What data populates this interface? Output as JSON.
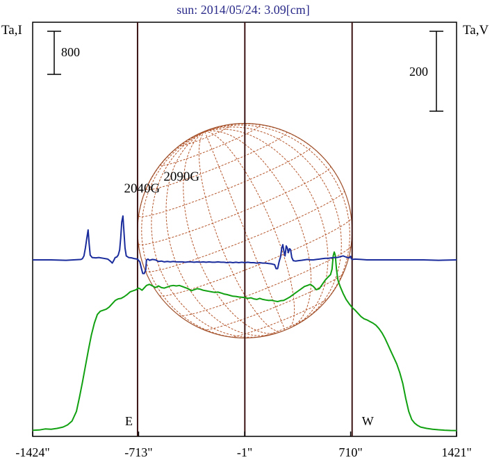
{
  "chart_data": {
    "type": "line",
    "title": "sun: 2014/05/24: 3.09[cm]",
    "y_left_label": "Ta,I",
    "y_right_label": "Ta,V",
    "x_ticks": [
      {
        "value": -1424,
        "label": "-1424\""
      },
      {
        "value": -713,
        "label": "-713\""
      },
      {
        "value": -1,
        "label": "-1\""
      },
      {
        "value": 710,
        "label": "710\""
      },
      {
        "value": 1421,
        "label": "1421\""
      }
    ],
    "xlim": [
      -1424,
      1421
    ],
    "limb_labels": {
      "east": "E",
      "west": "W"
    },
    "limb_positions": [
      -720,
      720
    ],
    "scale_bars": [
      {
        "label": "800",
        "side": "left",
        "value": 800
      },
      {
        "label": "200",
        "side": "right",
        "value": 200
      }
    ],
    "annotations": [
      {
        "text": "2040G",
        "x": -690
      },
      {
        "text": "2090G",
        "x": -425
      }
    ],
    "series": [
      {
        "name": "Ta,I",
        "color": "#10a010",
        "points": [
          [
            -1424,
            10
          ],
          [
            -1380,
            15
          ],
          [
            -1340,
            35
          ],
          [
            -1300,
            30
          ],
          [
            -1260,
            45
          ],
          [
            -1220,
            70
          ],
          [
            -1190,
            110
          ],
          [
            -1160,
            180
          ],
          [
            -1130,
            360
          ],
          [
            -1110,
            620
          ],
          [
            -1090,
            900
          ],
          [
            -1070,
            1200
          ],
          [
            -1050,
            1500
          ],
          [
            -1030,
            1780
          ],
          [
            -1010,
            2000
          ],
          [
            -990,
            2160
          ],
          [
            -970,
            2220
          ],
          [
            -950,
            2240
          ],
          [
            -930,
            2260
          ],
          [
            -910,
            2300
          ],
          [
            -890,
            2360
          ],
          [
            -870,
            2420
          ],
          [
            -850,
            2450
          ],
          [
            -830,
            2460
          ],
          [
            -810,
            2490
          ],
          [
            -790,
            2530
          ],
          [
            -770,
            2580
          ],
          [
            -750,
            2600
          ],
          [
            -730,
            2620
          ],
          [
            -715,
            2650
          ],
          [
            -705,
            2640
          ],
          [
            -690,
            2610
          ],
          [
            -680,
            2640
          ],
          [
            -660,
            2700
          ],
          [
            -640,
            2720
          ],
          [
            -620,
            2690
          ],
          [
            -600,
            2660
          ],
          [
            -580,
            2690
          ],
          [
            -560,
            2660
          ],
          [
            -540,
            2650
          ],
          [
            -520,
            2670
          ],
          [
            -500,
            2690
          ],
          [
            -480,
            2700
          ],
          [
            -460,
            2690
          ],
          [
            -440,
            2700
          ],
          [
            -420,
            2680
          ],
          [
            -400,
            2660
          ],
          [
            -380,
            2640
          ],
          [
            -360,
            2600
          ],
          [
            -340,
            2620
          ],
          [
            -320,
            2640
          ],
          [
            -300,
            2630
          ],
          [
            -280,
            2610
          ],
          [
            -260,
            2600
          ],
          [
            -240,
            2590
          ],
          [
            -220,
            2580
          ],
          [
            -200,
            2570
          ],
          [
            -180,
            2575
          ],
          [
            -160,
            2560
          ],
          [
            -140,
            2540
          ],
          [
            -120,
            2530
          ],
          [
            -100,
            2515
          ],
          [
            -80,
            2500
          ],
          [
            -60,
            2495
          ],
          [
            -40,
            2485
          ],
          [
            -20,
            2480
          ],
          [
            0,
            2475
          ],
          [
            20,
            2460
          ],
          [
            40,
            2470
          ],
          [
            60,
            2450
          ],
          [
            80,
            2440
          ],
          [
            100,
            2460
          ],
          [
            120,
            2440
          ],
          [
            140,
            2430
          ],
          [
            160,
            2420
          ],
          [
            180,
            2425
          ],
          [
            200,
            2410
          ],
          [
            220,
            2400
          ],
          [
            240,
            2415
          ],
          [
            260,
            2420
          ],
          [
            280,
            2450
          ],
          [
            300,
            2480
          ],
          [
            320,
            2520
          ],
          [
            340,
            2560
          ],
          [
            360,
            2600
          ],
          [
            380,
            2640
          ],
          [
            400,
            2680
          ],
          [
            420,
            2700
          ],
          [
            440,
            2720
          ],
          [
            460,
            2680
          ],
          [
            480,
            2620
          ],
          [
            500,
            2640
          ],
          [
            520,
            2720
          ],
          [
            540,
            2800
          ],
          [
            560,
            2860
          ],
          [
            575,
            2900
          ],
          [
            585,
            3000
          ],
          [
            593,
            3250
          ],
          [
            600,
            3320
          ],
          [
            607,
            3260
          ],
          [
            615,
            3000
          ],
          [
            625,
            2800
          ],
          [
            640,
            2680
          ],
          [
            660,
            2550
          ],
          [
            680,
            2440
          ],
          [
            700,
            2360
          ],
          [
            720,
            2290
          ],
          [
            740,
            2240
          ],
          [
            760,
            2180
          ],
          [
            780,
            2120
          ],
          [
            800,
            2080
          ],
          [
            820,
            2060
          ],
          [
            840,
            2030
          ],
          [
            860,
            2000
          ],
          [
            880,
            1960
          ],
          [
            900,
            1900
          ],
          [
            920,
            1820
          ],
          [
            940,
            1720
          ],
          [
            960,
            1600
          ],
          [
            980,
            1480
          ],
          [
            1000,
            1360
          ],
          [
            1020,
            1240
          ],
          [
            1040,
            1080
          ],
          [
            1060,
            880
          ],
          [
            1080,
            600
          ],
          [
            1100,
            360
          ],
          [
            1120,
            210
          ],
          [
            1140,
            140
          ],
          [
            1160,
            100
          ],
          [
            1180,
            70
          ],
          [
            1220,
            45
          ],
          [
            1260,
            30
          ],
          [
            1300,
            20
          ],
          [
            1340,
            12
          ],
          [
            1380,
            6
          ],
          [
            1421,
            5
          ]
        ]
      },
      {
        "name": "Ta,V",
        "color": "#1a2c9c",
        "points": [
          [
            -1424,
            0
          ],
          [
            -1300,
            0
          ],
          [
            -1200,
            -1
          ],
          [
            -1150,
            0
          ],
          [
            -1100,
            1
          ],
          [
            -1090,
            3
          ],
          [
            -1080,
            10
          ],
          [
            -1070,
            30
          ],
          [
            -1060,
            55
          ],
          [
            -1052,
            75
          ],
          [
            -1045,
            40
          ],
          [
            -1038,
            12
          ],
          [
            -1025,
            6
          ],
          [
            -1000,
            5
          ],
          [
            -980,
            6
          ],
          [
            -950,
            4
          ],
          [
            -920,
            2
          ],
          [
            -900,
            -4
          ],
          [
            -890,
            -8
          ],
          [
            -880,
            -2
          ],
          [
            -870,
            6
          ],
          [
            -860,
            7
          ],
          [
            -850,
            12
          ],
          [
            -840,
            25
          ],
          [
            -833,
            55
          ],
          [
            -826,
            95
          ],
          [
            -818,
            110
          ],
          [
            -811,
            70
          ],
          [
            -804,
            30
          ],
          [
            -796,
            10
          ],
          [
            -780,
            6
          ],
          [
            -760,
            5
          ],
          [
            -740,
            3
          ],
          [
            -720,
            2
          ],
          [
            -705,
            -5
          ],
          [
            -695,
            -20
          ],
          [
            -685,
            -34
          ],
          [
            -675,
            -34
          ],
          [
            -665,
            -25
          ],
          [
            -660,
            0
          ],
          [
            -650,
            2
          ],
          [
            -640,
            -1
          ],
          [
            -620,
            1
          ],
          [
            -600,
            0
          ],
          [
            -580,
            -4
          ],
          [
            -560,
            -3
          ],
          [
            -540,
            -5
          ],
          [
            -520,
            -4
          ],
          [
            -500,
            -5
          ],
          [
            -480,
            -4
          ],
          [
            -460,
            -5
          ],
          [
            -440,
            -5
          ],
          [
            -420,
            -5
          ],
          [
            -400,
            -6
          ],
          [
            -380,
            -5
          ],
          [
            -360,
            -5
          ],
          [
            -340,
            -6
          ],
          [
            -320,
            -5
          ],
          [
            -300,
            -6
          ],
          [
            -280,
            -5
          ],
          [
            -260,
            -6
          ],
          [
            -240,
            -5
          ],
          [
            -220,
            -6
          ],
          [
            -200,
            -6
          ],
          [
            -180,
            -5
          ],
          [
            -160,
            -6
          ],
          [
            -140,
            -6
          ],
          [
            -120,
            -7
          ],
          [
            -100,
            -6
          ],
          [
            -80,
            -7
          ],
          [
            -60,
            -6
          ],
          [
            -40,
            -7
          ],
          [
            -20,
            -6
          ],
          [
            0,
            -7
          ],
          [
            20,
            -6
          ],
          [
            40,
            -7
          ],
          [
            60,
            -7
          ],
          [
            80,
            -8
          ],
          [
            100,
            -7
          ],
          [
            120,
            -8
          ],
          [
            140,
            -8
          ],
          [
            160,
            -9
          ],
          [
            180,
            -10
          ],
          [
            200,
            -12
          ],
          [
            210,
            -22
          ],
          [
            220,
            -22
          ],
          [
            230,
            -5
          ],
          [
            240,
            8
          ],
          [
            248,
            30
          ],
          [
            255,
            38
          ],
          [
            262,
            22
          ],
          [
            270,
            10
          ],
          [
            278,
            35
          ],
          [
            285,
            30
          ],
          [
            292,
            18
          ],
          [
            300,
            28
          ],
          [
            307,
            26
          ],
          [
            315,
            6
          ],
          [
            325,
            -2
          ],
          [
            340,
            -3
          ],
          [
            360,
            -2
          ],
          [
            380,
            -1
          ],
          [
            400,
            0
          ],
          [
            420,
            1
          ],
          [
            440,
            0
          ],
          [
            460,
            0
          ],
          [
            480,
            1
          ],
          [
            500,
            2
          ],
          [
            520,
            3
          ],
          [
            540,
            4
          ],
          [
            560,
            4
          ],
          [
            580,
            5
          ],
          [
            600,
            6
          ],
          [
            620,
            6
          ],
          [
            640,
            8
          ],
          [
            660,
            10
          ],
          [
            680,
            7
          ],
          [
            700,
            5
          ],
          [
            710,
            9
          ],
          [
            715,
            3
          ],
          [
            720,
            1
          ],
          [
            740,
            2
          ],
          [
            780,
            1
          ],
          [
            820,
            0
          ],
          [
            900,
            0
          ],
          [
            1000,
            0
          ],
          [
            1100,
            0
          ],
          [
            1200,
            0
          ],
          [
            1300,
            -1
          ],
          [
            1421,
            0
          ]
        ]
      }
    ]
  }
}
